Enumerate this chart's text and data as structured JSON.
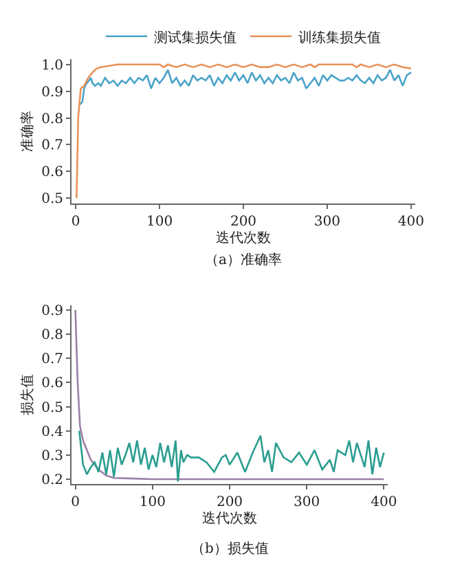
{
  "chart_data": [
    {
      "type": "line",
      "xlabel": "迭代次数",
      "ylabel": "准确率",
      "annotations": [
        "（a）准确率"
      ],
      "legend": "top",
      "grid": false,
      "xlim": [
        -5,
        405
      ],
      "ylim": [
        0.48,
        1.02
      ],
      "xticks": [
        0,
        100,
        200,
        300,
        400
      ],
      "yticks": [
        {
          "value": 0.5,
          "label": "0.5"
        },
        {
          "value": 0.6,
          "label": "0.6"
        },
        {
          "value": 0.7,
          "label": "0.7"
        },
        {
          "value": 0.8,
          "label": "0.8"
        },
        {
          "value": 0.9,
          "label": "0.9"
        },
        {
          "value": 1,
          "label": "1.0"
        }
      ],
      "series": [
        {
          "name": "测试集损失值",
          "color": "#4aa3c8",
          "x": [
            5,
            8,
            10,
            13,
            16,
            18,
            20,
            23,
            27,
            30,
            35,
            40,
            45,
            50,
            55,
            60,
            65,
            70,
            75,
            80,
            85,
            90,
            95,
            100,
            105,
            110,
            115,
            120,
            125,
            130,
            135,
            140,
            145,
            150,
            155,
            160,
            165,
            170,
            175,
            180,
            185,
            190,
            195,
            200,
            205,
            210,
            215,
            220,
            225,
            230,
            235,
            240,
            245,
            250,
            255,
            260,
            265,
            270,
            275,
            280,
            285,
            290,
            295,
            300,
            305,
            310,
            315,
            320,
            325,
            330,
            335,
            340,
            345,
            350,
            355,
            360,
            365,
            370,
            375,
            380,
            385,
            390,
            395,
            400
          ],
          "values": [
            0.85,
            0.86,
            0.91,
            0.93,
            0.94,
            0.95,
            0.93,
            0.92,
            0.93,
            0.92,
            0.95,
            0.93,
            0.94,
            0.92,
            0.94,
            0.93,
            0.95,
            0.93,
            0.95,
            0.94,
            0.96,
            0.91,
            0.95,
            0.93,
            0.95,
            0.98,
            0.93,
            0.95,
            0.92,
            0.94,
            0.92,
            0.96,
            0.94,
            0.95,
            0.94,
            0.96,
            0.92,
            0.95,
            0.93,
            0.96,
            0.94,
            0.97,
            0.94,
            0.96,
            0.93,
            0.97,
            0.94,
            0.96,
            0.93,
            0.95,
            0.93,
            0.96,
            0.94,
            0.95,
            0.93,
            0.97,
            0.94,
            0.95,
            0.91,
            0.93,
            0.95,
            0.92,
            0.96,
            0.94,
            0.96,
            0.95,
            0.94,
            0.94,
            0.95,
            0.94,
            0.96,
            0.94,
            0.93,
            0.95,
            0.93,
            0.96,
            0.94,
            0.95,
            0.98,
            0.94,
            0.96,
            0.92,
            0.96,
            0.97
          ]
        },
        {
          "name": "训练集损失值",
          "color": "#e8925a",
          "x": [
            1,
            3,
            6,
            10,
            15,
            20,
            25,
            30,
            40,
            50,
            100,
            105,
            110,
            120,
            130,
            140,
            150,
            160,
            170,
            180,
            190,
            200,
            210,
            220,
            230,
            240,
            250,
            260,
            270,
            280,
            285,
            290,
            330,
            335,
            340,
            350,
            360,
            370,
            380,
            390,
            400
          ],
          "values": [
            0.5,
            0.8,
            0.91,
            0.92,
            0.95,
            0.97,
            0.985,
            0.99,
            0.995,
            1,
            1,
            0.99,
            1,
            0.99,
            1,
            0.99,
            1,
            0.99,
            1,
            0.99,
            1,
            0.99,
            1,
            0.99,
            0.99,
            1,
            0.99,
            1,
            0.99,
            1,
            0.99,
            1,
            1,
            0.99,
            1,
            0.99,
            1,
            0.99,
            1,
            0.99,
            0.985
          ]
        }
      ]
    },
    {
      "type": "line",
      "xlabel": "迭代次数",
      "ylabel": "损失值",
      "annotations": [
        "（b）损失值"
      ],
      "grid": false,
      "xlim": [
        -5,
        405
      ],
      "ylim": [
        0.18,
        0.92
      ],
      "xticks": [
        0,
        100,
        200,
        300,
        400
      ],
      "yticks": [
        0.2,
        0.3,
        0.4,
        0.5,
        0.6,
        0.7,
        0.8,
        0.9
      ],
      "series": [
        {
          "color": "#9b7fa6",
          "x": [
            0,
            3,
            6,
            10,
            15,
            20,
            30,
            40,
            50,
            70,
            100,
            150,
            200,
            300,
            400
          ],
          "values": [
            0.9,
            0.6,
            0.42,
            0.36,
            0.32,
            0.28,
            0.24,
            0.215,
            0.205,
            0.203,
            0.2,
            0.2,
            0.2,
            0.2,
            0.2
          ]
        },
        {
          "color": "#2a9d8f",
          "x": [
            5,
            10,
            15,
            20,
            25,
            30,
            35,
            40,
            45,
            50,
            55,
            60,
            65,
            70,
            75,
            80,
            85,
            90,
            95,
            100,
            105,
            110,
            115,
            120,
            125,
            130,
            133,
            137,
            140,
            145,
            150,
            160,
            170,
            180,
            190,
            195,
            200,
            210,
            220,
            230,
            240,
            245,
            250,
            255,
            260,
            270,
            280,
            290,
            300,
            310,
            320,
            330,
            335,
            340,
            350,
            355,
            360,
            365,
            370,
            375,
            380,
            385,
            390,
            395,
            400
          ],
          "values": [
            0.4,
            0.26,
            0.22,
            0.25,
            0.27,
            0.23,
            0.31,
            0.22,
            0.32,
            0.21,
            0.33,
            0.26,
            0.3,
            0.35,
            0.27,
            0.36,
            0.26,
            0.33,
            0.24,
            0.3,
            0.25,
            0.35,
            0.27,
            0.34,
            0.25,
            0.36,
            0.19,
            0.32,
            0.27,
            0.3,
            0.29,
            0.29,
            0.27,
            0.23,
            0.29,
            0.3,
            0.26,
            0.31,
            0.23,
            0.31,
            0.38,
            0.27,
            0.32,
            0.23,
            0.35,
            0.29,
            0.27,
            0.31,
            0.26,
            0.32,
            0.24,
            0.28,
            0.23,
            0.32,
            0.3,
            0.36,
            0.27,
            0.35,
            0.3,
            0.25,
            0.36,
            0.22,
            0.33,
            0.25,
            0.31
          ]
        }
      ]
    }
  ]
}
